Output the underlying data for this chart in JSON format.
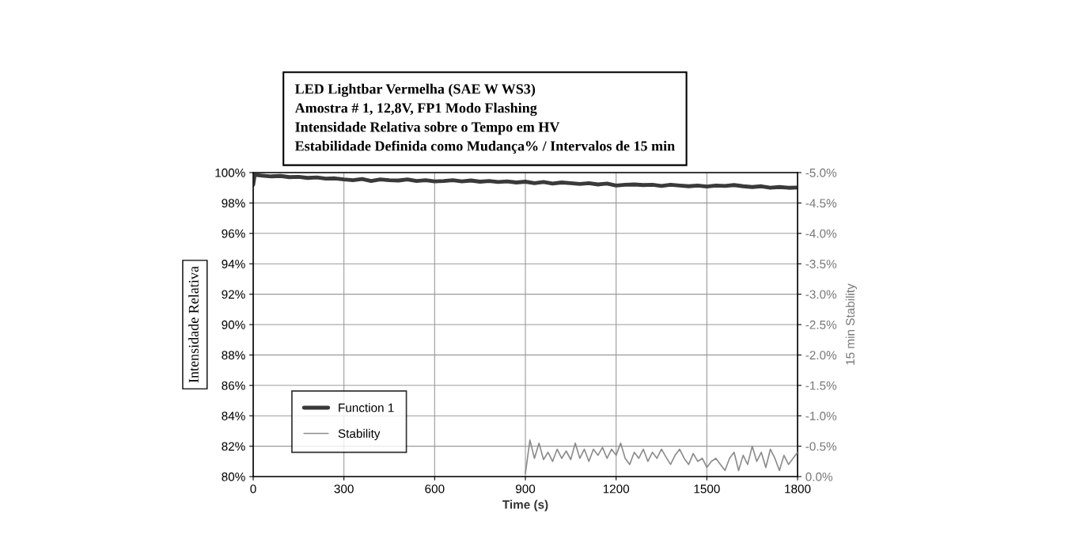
{
  "chart_data": {
    "type": "line",
    "title": "LED Lightbar Vermelha (SAE W WS3)\nAmostra # 1, 12,8V, FP1 Modo Flashing\nIntensidade Relativa sobre o Tempo em HV\nEstabilidade Definida como Mudança% / Intervalos de 15 min",
    "xlabel": "Time (s)",
    "ylabel": "Intensidade Relativa",
    "y2label": "15 min Stability",
    "xlim": [
      0,
      1800
    ],
    "xticks": [
      0,
      300,
      600,
      900,
      1200,
      1500,
      1800
    ],
    "ylim": [
      80,
      100
    ],
    "yticks": [
      {
        "value": 80,
        "label": "80%"
      },
      {
        "value": 82,
        "label": "82%"
      },
      {
        "value": 84,
        "label": "84%"
      },
      {
        "value": 86,
        "label": "86%"
      },
      {
        "value": 88,
        "label": "88%"
      },
      {
        "value": 90,
        "label": "90%"
      },
      {
        "value": 92,
        "label": "92%"
      },
      {
        "value": 94,
        "label": "94%"
      },
      {
        "value": 96,
        "label": "96%"
      },
      {
        "value": 98,
        "label": "98%"
      },
      {
        "value": 100,
        "label": "100%"
      }
    ],
    "y2lim": [
      0,
      -5
    ],
    "y2ticks": [
      {
        "value": 0,
        "label": "0.0%"
      },
      {
        "value": -0.5,
        "label": "-0.5%"
      },
      {
        "value": -1,
        "label": "-1.0%"
      },
      {
        "value": -1.5,
        "label": "-1.5%"
      },
      {
        "value": -2,
        "label": "-2.0%"
      },
      {
        "value": -2.5,
        "label": "-2.5%"
      },
      {
        "value": -3,
        "label": "-3.0%"
      },
      {
        "value": -3.5,
        "label": "-3.5%"
      },
      {
        "value": -4,
        "label": "-4.0%"
      },
      {
        "value": -4.5,
        "label": "-4.5%"
      },
      {
        "value": -5,
        "label": "-5.0%"
      }
    ],
    "grid": true,
    "legend": "bottom left",
    "marker": "none",
    "line_style": "solid",
    "series": [
      {
        "name": "Function 1",
        "color": "#3a3a3a",
        "x": [
          0,
          5,
          30,
          60,
          90,
          120,
          150,
          180,
          210,
          240,
          270,
          300,
          330,
          360,
          390,
          420,
          450,
          480,
          510,
          540,
          570,
          600,
          630,
          660,
          690,
          720,
          750,
          780,
          810,
          840,
          870,
          900,
          930,
          960,
          990,
          1020,
          1050,
          1080,
          1110,
          1140,
          1170,
          1200,
          1230,
          1260,
          1290,
          1320,
          1350,
          1380,
          1410,
          1440,
          1470,
          1500,
          1530,
          1560,
          1590,
          1620,
          1650,
          1680,
          1710,
          1740,
          1770,
          1800
        ],
        "values": [
          99.2,
          99.85,
          99.8,
          99.75,
          99.78,
          99.7,
          99.72,
          99.65,
          99.68,
          99.6,
          99.62,
          99.55,
          99.5,
          99.58,
          99.45,
          99.55,
          99.5,
          99.48,
          99.55,
          99.45,
          99.5,
          99.42,
          99.45,
          99.5,
          99.42,
          99.48,
          99.4,
          99.45,
          99.38,
          99.42,
          99.35,
          99.4,
          99.3,
          99.38,
          99.28,
          99.35,
          99.3,
          99.25,
          99.3,
          99.22,
          99.28,
          99.15,
          99.2,
          99.22,
          99.18,
          99.2,
          99.12,
          99.2,
          99.15,
          99.1,
          99.15,
          99.08,
          99.15,
          99.12,
          99.18,
          99.1,
          99.05,
          99.1,
          99.0,
          99.05,
          99.0,
          99.02
        ]
      },
      {
        "name": "Stability",
        "color": "#8c8c8c",
        "axis": "y2",
        "x": [
          900,
          915,
          930,
          945,
          960,
          975,
          990,
          1005,
          1020,
          1035,
          1050,
          1065,
          1080,
          1095,
          1110,
          1125,
          1140,
          1155,
          1170,
          1185,
          1200,
          1215,
          1230,
          1245,
          1260,
          1275,
          1290,
          1305,
          1320,
          1335,
          1350,
          1365,
          1380,
          1395,
          1410,
          1425,
          1440,
          1455,
          1470,
          1485,
          1500,
          1515,
          1530,
          1545,
          1560,
          1575,
          1590,
          1605,
          1620,
          1635,
          1650,
          1665,
          1680,
          1695,
          1710,
          1725,
          1740,
          1755,
          1770,
          1785,
          1800
        ],
        "values": [
          -0.05,
          -0.6,
          -0.3,
          -0.55,
          -0.28,
          -0.4,
          -0.25,
          -0.45,
          -0.3,
          -0.42,
          -0.28,
          -0.55,
          -0.3,
          -0.45,
          -0.25,
          -0.45,
          -0.35,
          -0.48,
          -0.3,
          -0.45,
          -0.35,
          -0.55,
          -0.3,
          -0.2,
          -0.4,
          -0.3,
          -0.45,
          -0.25,
          -0.4,
          -0.3,
          -0.45,
          -0.32,
          -0.2,
          -0.35,
          -0.45,
          -0.3,
          -0.2,
          -0.38,
          -0.25,
          -0.3,
          -0.15,
          -0.25,
          -0.3,
          -0.2,
          -0.1,
          -0.3,
          -0.4,
          -0.1,
          -0.35,
          -0.2,
          -0.5,
          -0.25,
          -0.4,
          -0.15,
          -0.45,
          -0.3,
          -0.1,
          -0.35,
          -0.2,
          -0.3,
          -0.4
        ]
      }
    ]
  }
}
